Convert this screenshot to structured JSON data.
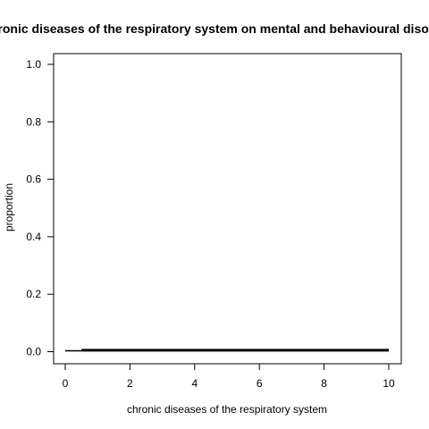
{
  "chart_data": {
    "type": "line",
    "title": "Effect of chronic diseases of the respiratory system on mental and behavioural disorders",
    "xlabel": "chronic diseases of the respiratory system",
    "ylabel": "proportion",
    "xlim": [
      0,
      10
    ],
    "ylim": [
      0,
      1
    ],
    "x_ticks": [
      "0",
      "2",
      "4",
      "6",
      "8",
      "10"
    ],
    "y_ticks": [
      "0.0",
      "0.2",
      "0.4",
      "0.6",
      "0.8",
      "1.0"
    ],
    "grid": false,
    "legend": "none",
    "series": [
      {
        "line_style": "thin",
        "x": [
          0,
          0.5
        ],
        "y": [
          0.003,
          0.003
        ]
      },
      {
        "line_style": "thick",
        "x": [
          0.5,
          10
        ],
        "y": [
          0.005,
          0.005
        ]
      }
    ]
  }
}
